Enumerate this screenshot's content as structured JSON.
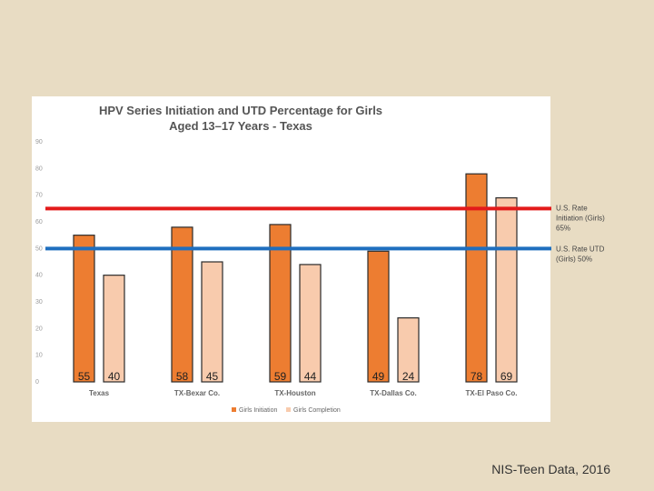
{
  "chart_data": {
    "type": "bar",
    "title": [
      "HPV Series Initiation and UTD Percentage for Girls",
      "Aged 13–17 Years - Texas"
    ],
    "categories": [
      "Texas",
      "TX-Bexar Co.",
      "TX-Houston",
      "TX-Dallas Co.",
      "TX-El Paso Co."
    ],
    "series": [
      {
        "name": "Girls Initiation",
        "values": [
          55,
          58,
          59,
          49,
          78
        ],
        "color": "#ed7d31"
      },
      {
        "name": "Girls Completion",
        "values": [
          40,
          45,
          44,
          24,
          69
        ],
        "color": "#f8cbad"
      }
    ],
    "ylim": [
      0,
      90
    ],
    "yticks": [
      0,
      10,
      20,
      30,
      40,
      50,
      60,
      70,
      80,
      90
    ],
    "reference_lines": [
      {
        "label": [
          "U.S. Rate",
          "Initiation (Girls)",
          "65%"
        ],
        "value": 65,
        "color": "#e31a1a"
      },
      {
        "label": [
          "U.S. Rate UTD",
          "(Girls) 50%"
        ],
        "value": 50,
        "color": "#1f6fbf"
      }
    ],
    "legend": "bottom"
  },
  "footer": "NIS-Teen Data, 2016"
}
